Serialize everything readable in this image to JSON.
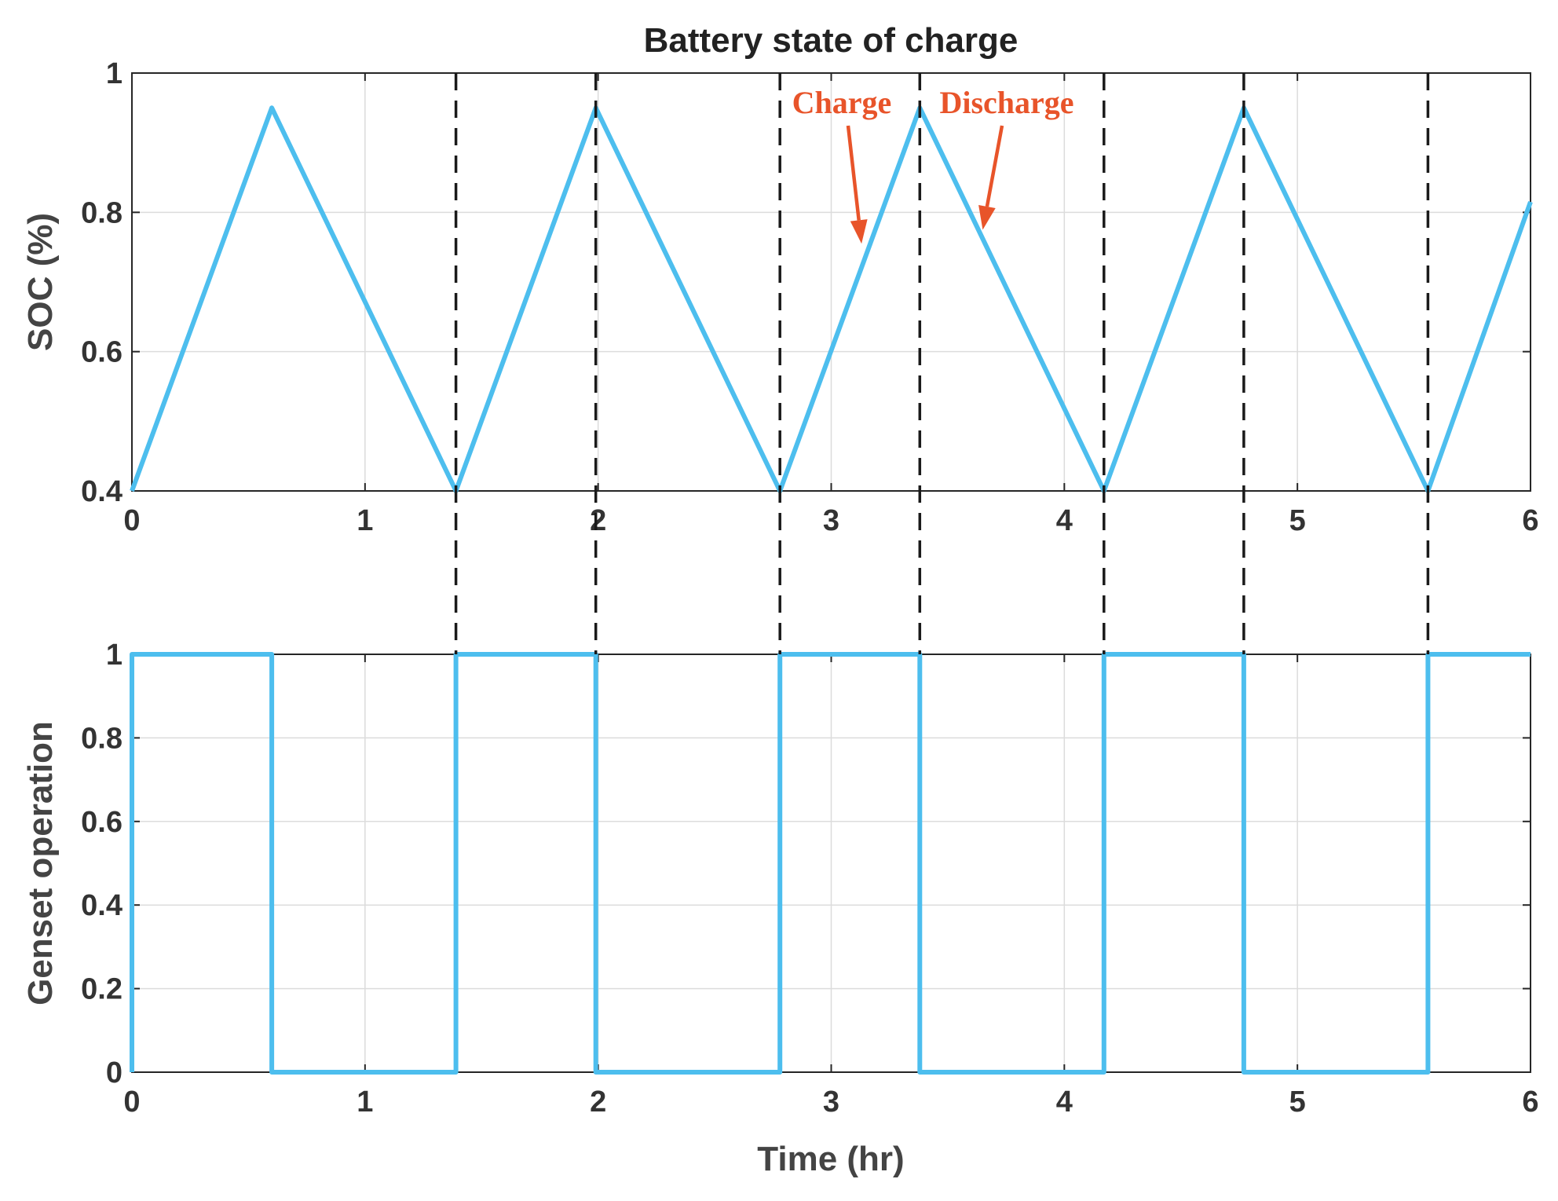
{
  "chart_data": [
    {
      "type": "line",
      "title": "Battery state of charge",
      "xlabel": "",
      "ylabel": "SOC (%)",
      "xlim": [
        0,
        6
      ],
      "ylim": [
        0.4,
        1
      ],
      "xticks": [
        "0",
        "1",
        "2",
        "3",
        "4",
        "5",
        "6"
      ],
      "yticks": [
        "0.4",
        "0.6",
        "0.8",
        "1"
      ],
      "grid": true,
      "series": [
        {
          "x": [
            0,
            0.6,
            1.39,
            1.99,
            2.78,
            3.38,
            4.17,
            4.77,
            5.56,
            6.0
          ],
          "y": [
            0.4,
            0.95,
            0.4,
            0.95,
            0.4,
            0.95,
            0.4,
            0.95,
            0.4,
            0.815
          ]
        }
      ],
      "annotations": [
        {
          "text": "Charge",
          "target": [
            3.13,
            0.755
          ]
        },
        {
          "text": "Discharge",
          "target": [
            3.65,
            0.775
          ]
        }
      ],
      "color": "#4dbeee"
    },
    {
      "type": "line",
      "title": "",
      "xlabel": "Time (hr)",
      "ylabel": "Genset operation",
      "xlim": [
        0,
        6
      ],
      "ylim": [
        0,
        1
      ],
      "xticks": [
        "0",
        "1",
        "2",
        "3",
        "4",
        "5",
        "6"
      ],
      "yticks": [
        "0",
        "0.2",
        "0.4",
        "0.6",
        "0.8",
        "1"
      ],
      "grid": true,
      "series": [
        {
          "x": [
            0,
            0,
            0.6,
            0.6,
            1.39,
            1.39,
            1.99,
            1.99,
            2.78,
            2.78,
            3.38,
            3.38,
            4.17,
            4.17,
            4.77,
            4.77,
            5.56,
            5.56,
            6.0
          ],
          "y": [
            0,
            1,
            1,
            0,
            0,
            1,
            1,
            0,
            0,
            1,
            1,
            0,
            0,
            1,
            1,
            0,
            0,
            1,
            1
          ]
        }
      ],
      "color": "#4dbeee"
    }
  ],
  "switch_times": [
    1.39,
    1.99,
    2.78,
    3.38,
    4.17,
    4.77,
    5.56
  ],
  "colors": {
    "series": "#4dbeee",
    "annotation": "#e8542a",
    "dashed": "#1a1a1a"
  }
}
